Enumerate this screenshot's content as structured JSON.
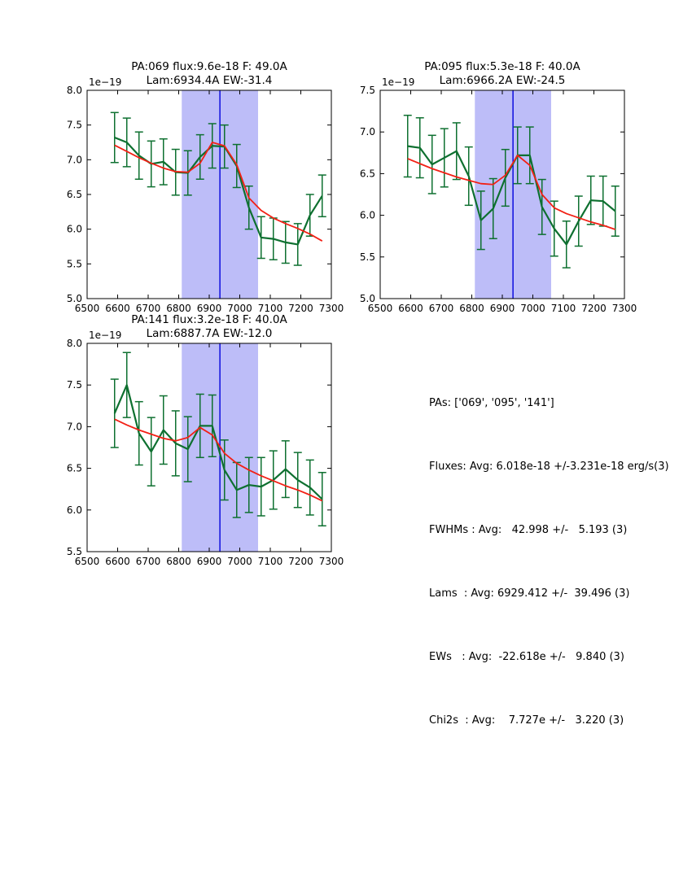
{
  "figure": {
    "background": "#ffffff"
  },
  "colors": {
    "data_line": "#0e7030",
    "fit_line": "#f22015",
    "band_fill": "#bdbdf8",
    "vline": "#0000dd",
    "axis": "#000000",
    "text": "#000000"
  },
  "chart_data": [
    {
      "type": "line",
      "title_line1": "PA:069 flux:9.6e-18 F: 49.0A",
      "title_line2": "Lam:6934.4A EW:-31.4",
      "offset_text": "1e−19",
      "xlim": [
        6500,
        7300
      ],
      "ylim": [
        5.0,
        8.0
      ],
      "xticks": [
        6500,
        6600,
        6700,
        6800,
        6900,
        7000,
        7100,
        7200,
        7300
      ],
      "yticks": [
        5.0,
        5.5,
        6.0,
        6.5,
        7.0,
        7.5,
        8.0
      ],
      "band_x": [
        6810,
        7060
      ],
      "vline_x": 6935,
      "grid": false,
      "x": [
        6590,
        6630,
        6670,
        6710,
        6750,
        6790,
        6830,
        6870,
        6910,
        6950,
        6990,
        7030,
        7070,
        7110,
        7150,
        7190,
        7230,
        7270
      ],
      "series": [
        {
          "name": "spectrum-data",
          "values": [
            7.32,
            7.25,
            7.06,
            6.94,
            6.97,
            6.82,
            6.81,
            7.04,
            7.2,
            7.19,
            6.91,
            6.31,
            5.88,
            5.86,
            5.81,
            5.78,
            6.2,
            6.48
          ],
          "errors": [
            0.36,
            0.35,
            0.34,
            0.33,
            0.33,
            0.33,
            0.32,
            0.32,
            0.32,
            0.31,
            0.31,
            0.31,
            0.3,
            0.3,
            0.3,
            0.3,
            0.3,
            0.3
          ]
        },
        {
          "name": "model-fit",
          "values": [
            7.21,
            7.12,
            7.03,
            6.95,
            6.88,
            6.83,
            6.82,
            6.95,
            7.25,
            7.2,
            6.93,
            6.45,
            6.27,
            6.16,
            6.08,
            6.01,
            5.93,
            5.83
          ]
        }
      ]
    },
    {
      "type": "line",
      "title_line1": "PA:095 flux:5.3e-18 F: 40.0A",
      "title_line2": "Lam:6966.2A EW:-24.5",
      "offset_text": "1e−19",
      "xlim": [
        6500,
        7300
      ],
      "ylim": [
        5.0,
        7.5
      ],
      "xticks": [
        6500,
        6600,
        6700,
        6800,
        6900,
        7000,
        7100,
        7200,
        7300
      ],
      "yticks": [
        5.0,
        5.5,
        6.0,
        6.5,
        7.0,
        7.5
      ],
      "band_x": [
        6810,
        7060
      ],
      "vline_x": 6935,
      "grid": false,
      "x": [
        6590,
        6630,
        6670,
        6710,
        6750,
        6790,
        6830,
        6870,
        6910,
        6950,
        6990,
        7030,
        7070,
        7110,
        7150,
        7190,
        7230,
        7270
      ],
      "series": [
        {
          "name": "spectrum-data",
          "values": [
            6.83,
            6.81,
            6.61,
            6.69,
            6.77,
            6.47,
            5.94,
            6.08,
            6.45,
            6.72,
            6.72,
            6.1,
            5.84,
            5.65,
            5.93,
            6.18,
            6.17,
            6.05
          ],
          "errors": [
            0.37,
            0.36,
            0.35,
            0.35,
            0.34,
            0.35,
            0.35,
            0.36,
            0.34,
            0.34,
            0.34,
            0.33,
            0.33,
            0.28,
            0.3,
            0.29,
            0.3,
            0.3
          ]
        },
        {
          "name": "model-fit",
          "values": [
            6.68,
            6.62,
            6.56,
            6.51,
            6.46,
            6.42,
            6.38,
            6.37,
            6.48,
            6.72,
            6.6,
            6.25,
            6.09,
            6.02,
            5.97,
            5.92,
            5.88,
            5.83
          ]
        }
      ]
    },
    {
      "type": "line",
      "title_line1": "PA:141 flux:3.2e-18 F: 40.0A",
      "title_line2": "Lam:6887.7A EW:-12.0",
      "offset_text": "1e−19",
      "xlim": [
        6500,
        7300
      ],
      "ylim": [
        5.5,
        8.0
      ],
      "xticks": [
        6500,
        6600,
        6700,
        6800,
        6900,
        7000,
        7100,
        7200,
        7300
      ],
      "yticks": [
        5.5,
        6.0,
        6.5,
        7.0,
        7.5,
        8.0
      ],
      "band_x": [
        6810,
        7060
      ],
      "vline_x": 6935,
      "grid": false,
      "x": [
        6590,
        6630,
        6670,
        6710,
        6750,
        6790,
        6830,
        6870,
        6910,
        6950,
        6990,
        7030,
        7070,
        7110,
        7150,
        7190,
        7230,
        7270
      ],
      "series": [
        {
          "name": "spectrum-data",
          "values": [
            7.16,
            7.5,
            6.92,
            6.7,
            6.96,
            6.8,
            6.73,
            7.01,
            7.01,
            6.48,
            6.24,
            6.3,
            6.28,
            6.36,
            6.49,
            6.36,
            6.27,
            6.13
          ],
          "errors": [
            0.41,
            0.39,
            0.38,
            0.41,
            0.41,
            0.39,
            0.39,
            0.38,
            0.37,
            0.36,
            0.33,
            0.33,
            0.35,
            0.35,
            0.34,
            0.33,
            0.33,
            0.32
          ]
        },
        {
          "name": "model-fit",
          "values": [
            7.09,
            7.02,
            6.96,
            6.91,
            6.86,
            6.83,
            6.87,
            6.99,
            6.9,
            6.68,
            6.56,
            6.48,
            6.41,
            6.35,
            6.29,
            6.24,
            6.18,
            6.11
          ]
        }
      ]
    }
  ],
  "stats_panel": {
    "lines": [
      "PAs: ['069', '095', '141']",
      "Fluxes: Avg: 6.018e-18 +/-3.231e-18 erg/s(3)",
      "FWHMs : Avg:   42.998 +/-   5.193 (3)",
      "Lams  : Avg: 6929.412 +/-  39.496 (3)",
      "EWs   : Avg:  -22.618e +/-   9.840 (3)",
      "Chi2s  : Avg:    7.727e +/-   3.220 (3)"
    ]
  }
}
